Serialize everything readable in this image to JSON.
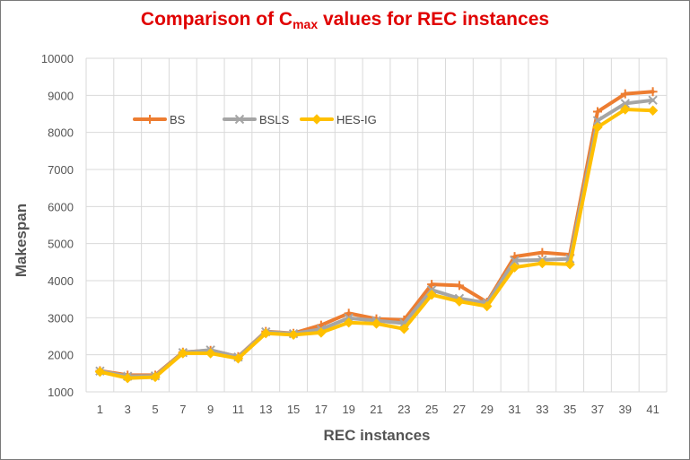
{
  "chart_data": {
    "type": "line",
    "title_main": "Comparison of C",
    "title_sub": "max",
    "title_rest": " values for REC instances",
    "xlabel": "REC instances",
    "ylabel": "Makespan",
    "ylim": [
      1000,
      10000
    ],
    "yticks": [
      1000,
      2000,
      3000,
      4000,
      5000,
      6000,
      7000,
      8000,
      9000,
      10000
    ],
    "grid": true,
    "legend_position": "top-left",
    "categories": [
      "1",
      "3",
      "5",
      "7",
      "9",
      "11",
      "13",
      "15",
      "17",
      "19",
      "21",
      "23",
      "25",
      "27",
      "29",
      "31",
      "33",
      "35",
      "37",
      "39",
      "41"
    ],
    "series": [
      {
        "name": "BS",
        "color": "#ed7d31",
        "marker": "plus",
        "values": [
          1570,
          1450,
          1450,
          2070,
          2120,
          1950,
          2630,
          2580,
          2800,
          3120,
          2970,
          2940,
          3900,
          3870,
          3420,
          4650,
          4760,
          4700,
          8560,
          9040,
          9100
        ]
      },
      {
        "name": "BSLS",
        "color": "#a5a5a5",
        "marker": "x",
        "values": [
          1560,
          1420,
          1430,
          2060,
          2130,
          1940,
          2620,
          2570,
          2690,
          2990,
          2920,
          2850,
          3750,
          3520,
          3400,
          4540,
          4560,
          4590,
          8320,
          8780,
          8870
        ]
      },
      {
        "name": "HES-IG",
        "color": "#ffc000",
        "marker": "diamond",
        "values": [
          1540,
          1370,
          1400,
          2040,
          2040,
          1900,
          2580,
          2540,
          2600,
          2870,
          2840,
          2700,
          3620,
          3440,
          3310,
          4360,
          4470,
          4440,
          8140,
          8620,
          8590
        ]
      }
    ]
  }
}
